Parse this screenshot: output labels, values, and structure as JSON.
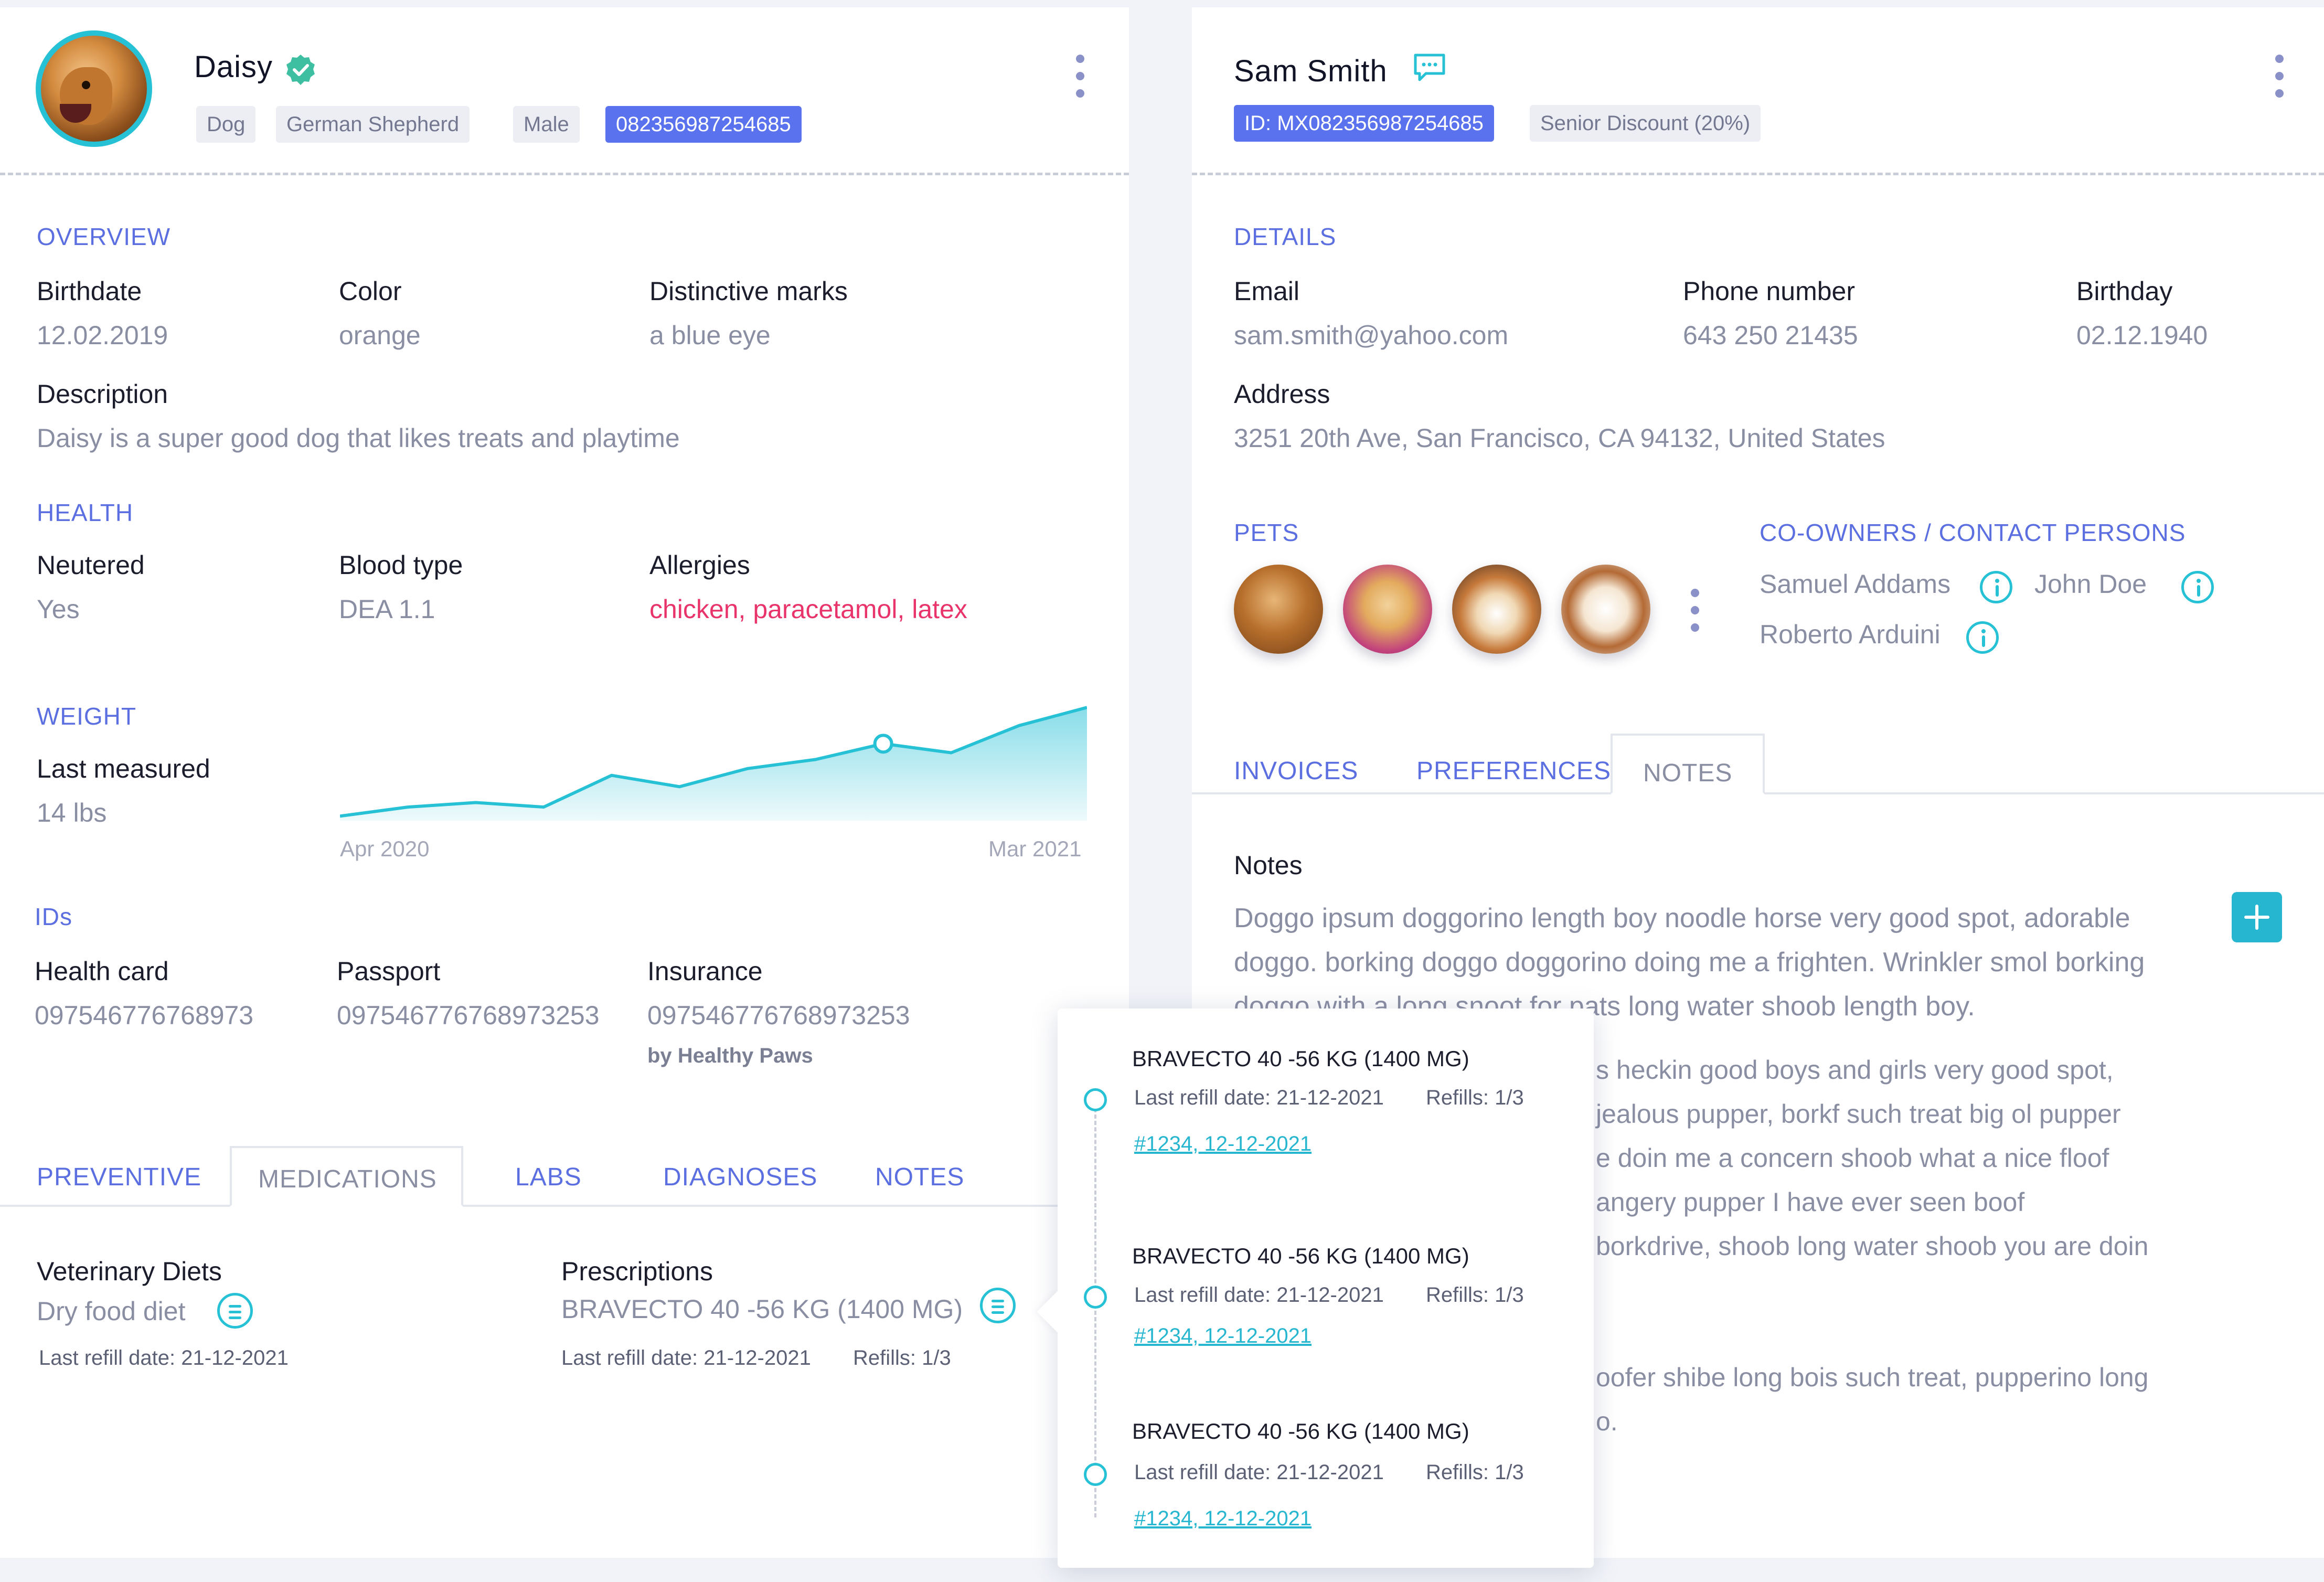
{
  "pet": {
    "name": "Daisy",
    "tags": [
      "Dog",
      "German Shepherd",
      "Male"
    ],
    "chip_id": "082356987254685",
    "overview": {
      "title": "OVERVIEW",
      "birthdate_label": "Birthdate",
      "birthdate": "12.02.2019",
      "color_label": "Color",
      "color": "orange",
      "marks_label": "Distinctive marks",
      "marks": "a blue eye",
      "description_label": "Description",
      "description": "Daisy is a super good dog that likes treats and playtime"
    },
    "health": {
      "title": "HEALTH",
      "neutered_label": "Neutered",
      "neutered": "Yes",
      "blood_label": "Blood type",
      "blood": "DEA 1.1",
      "allergies_label": "Allergies",
      "allergies": "chicken, paracetamol, latex"
    },
    "weight": {
      "title": "WEIGHT",
      "last_label": "Last measured",
      "last": "14 lbs",
      "x_start": "Apr 2020",
      "x_end": "Mar 2021"
    },
    "ids": {
      "title": "IDs",
      "health_card_label": "Health card",
      "health_card": "097546776768973",
      "passport_label": "Passport",
      "passport": "097546776768973253",
      "insurance_label": "Insurance",
      "insurance": "097546776768973253",
      "insurance_provider": "by Healthy Paws"
    },
    "tabs": [
      "PREVENTIVE",
      "MEDICATIONS",
      "LABS",
      "DIAGNOSES",
      "NOTES"
    ],
    "active_tab": "MEDICATIONS",
    "medications": {
      "diets_label": "Veterinary Diets",
      "diet": "Dry food diet",
      "diet_refill": "Last refill date: 21-12-2021",
      "prescriptions_label": "Prescriptions",
      "prescription": "BRAVECTO 40 -56 KG (1400 MG)",
      "prescription_refill": "Last refill date: 21-12-2021",
      "prescription_refills": "Refills: 1/3"
    }
  },
  "owner": {
    "name": "Sam Smith",
    "id_tag": "ID: MX082356987254685",
    "discount_tag": "Senior Discount (20%)",
    "details": {
      "title": "DETAILS",
      "email_label": "Email",
      "email": "sam.smith@yahoo.com",
      "phone_label": "Phone number",
      "phone": "643 250 21435",
      "birthday_label": "Birthday",
      "birthday": "02.12.1940",
      "address_label": "Address",
      "address": "3251 20th Ave, San Francisco, CA 94132, United States"
    },
    "pets_title": "PETS",
    "coowners_title": "CO-OWNERS / CONTACT PERSONS",
    "coowners": [
      "Samuel Addams",
      "John Doe",
      "Roberto Arduini"
    ],
    "tabs": [
      "INVOICES",
      "PREFERENCES",
      "NOTES"
    ],
    "active_tab": "NOTES",
    "notes": {
      "label": "Notes",
      "paragraph1": "Doggo ipsum doggorino length boy noodle horse very good spot, adorable doggo. borking doggo doggorino doing me a frighten. Wrinkler smol borking doggo with a long snoot for pats long water shoob length boy.",
      "fragments": [
        "s heckin good boys and girls very good spot,",
        "jealous pupper, borkf such treat big ol pupper",
        "e doin me a concern shoob what a nice floof",
        "angery pupper I have ever seen boof",
        "borkdrive, shoob long water shoob you are doin",
        "oofer shibe long bois such treat, pupperino long",
        "o."
      ]
    }
  },
  "prescription_history": [
    {
      "name": "BRAVECTO 40 -56 KG (1400 MG)",
      "refill": "Last refill date: 21-12-2021",
      "refills": "Refills: 1/3",
      "link": "#1234, 12-12-2021"
    },
    {
      "name": "BRAVECTO 40 -56 KG (1400 MG)",
      "refill": "Last refill date: 21-12-2021",
      "refills": "Refills: 1/3",
      "link": "#1234, 12-12-2021"
    },
    {
      "name": "BRAVECTO 40 -56 KG (1400 MG)",
      "refill": "Last refill date: 21-12-2021",
      "refills": "Refills: 1/3",
      "link": "#1234, 12-12-2021"
    }
  ],
  "colors": {
    "accent": "#5b6fe0",
    "teal": "#27c1d6",
    "alert": "#e8346b",
    "tag_blue": "#5b72ee"
  },
  "weight_series": [
    11.0,
    11.4,
    11.6,
    11.4,
    12.8,
    12.3,
    13.1,
    13.5,
    14.2,
    13.8,
    15.0,
    15.8
  ],
  "weight_marker_index": 8
}
